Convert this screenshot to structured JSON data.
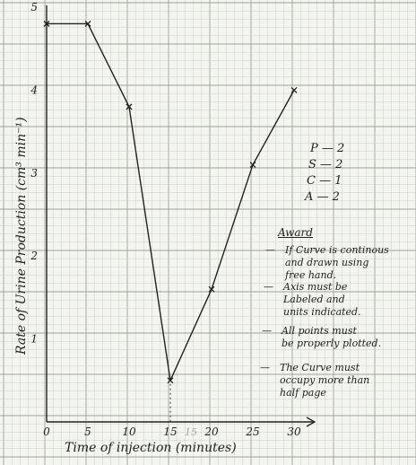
{
  "chart_data": {
    "type": "line",
    "xlabel": "Time of injection (minutes)",
    "ylabel": "Rate of Urine Production (cm³ min⁻¹)",
    "xlim": [
      0,
      30
    ],
    "ylim": [
      0,
      5
    ],
    "x_ticks": [
      "0",
      "5",
      "10",
      "15",
      "20",
      "25",
      "30"
    ],
    "y_ticks": [
      "1",
      "2",
      "3",
      "4",
      "5"
    ],
    "extra_tick": "15",
    "grid": true,
    "series": [
      {
        "x": [
          0,
          5,
          10,
          15,
          20,
          25,
          30
        ],
        "y": [
          4.8,
          4.8,
          3.8,
          0.5,
          1.6,
          3.1,
          4.0
        ]
      }
    ]
  },
  "marking": [
    {
      "letter": "P",
      "score": "2"
    },
    {
      "letter": "S",
      "score": "2"
    },
    {
      "letter": "C",
      "score": "1"
    },
    {
      "letter": "A",
      "score": "2"
    }
  ],
  "award": {
    "title": "Award",
    "items": [
      "If Curve is continous\nand drawn using\nfree hand.",
      "Axis must be\nLabeled and\nunits indicated.",
      "All points must\nbe properly plotted.",
      "The Curve must\noccupy more than\nhalf page"
    ]
  },
  "colors": {
    "grid_minor": "#c9cfc9",
    "grid_major": "#9aa39a",
    "ink": "#222222"
  }
}
